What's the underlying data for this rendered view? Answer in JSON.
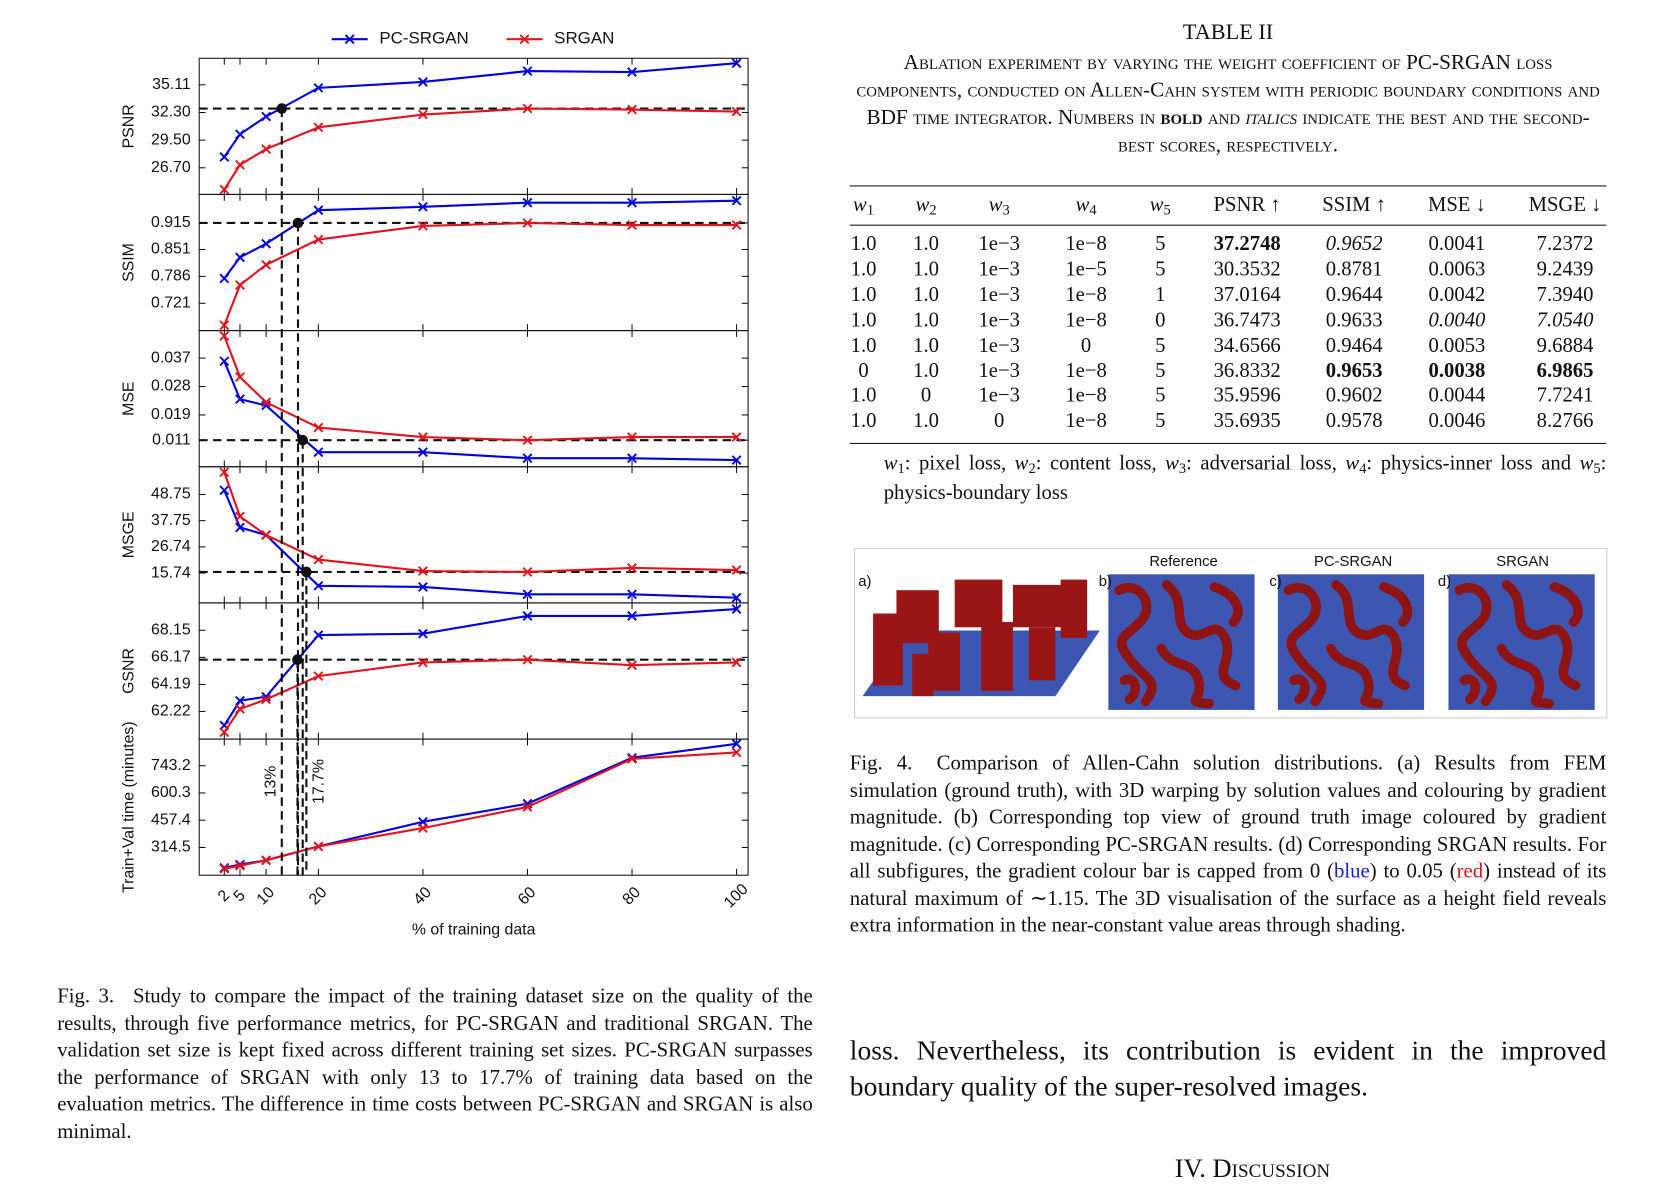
{
  "chart_data": [
    {
      "type": "line",
      "ylabel": "PSNR",
      "x": [
        2,
        5,
        10,
        20,
        40,
        60,
        80,
        100
      ],
      "series": [
        {
          "name": "PC-SRGAN",
          "color": "#0000dd",
          "values": [
            27.8,
            30.1,
            31.9,
            34.8,
            35.4,
            36.5,
            36.4,
            37.3
          ]
        },
        {
          "name": "SRGAN",
          "color": "#e0141e",
          "values": [
            24.5,
            27.0,
            28.6,
            30.8,
            32.1,
            32.7,
            32.6,
            32.4
          ]
        }
      ],
      "xlim": [
        -2.8,
        102.2
      ],
      "xticks": [
        2,
        5,
        10,
        20,
        40,
        60,
        80,
        100
      ],
      "ylim": [
        24.0,
        37.8
      ],
      "yticks": [
        {
          "value": 26.7,
          "label": "26.70"
        },
        {
          "value": 29.5,
          "label": "29.50"
        },
        {
          "value": 32.3,
          "label": "32.30"
        },
        35.11
      ],
      "threshold": 32.7,
      "crossing": 13
    },
    {
      "type": "line",
      "ylabel": "SSIM",
      "x": [
        2,
        5,
        10,
        20,
        40,
        60,
        80,
        100
      ],
      "series": [
        {
          "name": "PC-SRGAN",
          "color": "#0000dd",
          "values": [
            0.781,
            0.832,
            0.865,
            0.946,
            0.954,
            0.964,
            0.964,
            0.969
          ]
        },
        {
          "name": "SRGAN",
          "color": "#e0141e",
          "values": [
            0.668,
            0.765,
            0.814,
            0.875,
            0.908,
            0.915,
            0.91,
            0.91
          ]
        }
      ],
      "xlim": [
        -2.8,
        102.2
      ],
      "xticks": [
        2,
        5,
        10,
        20,
        40,
        60,
        80,
        100
      ],
      "ylim": [
        0.655,
        0.984
      ],
      "yticks": [
        0.721,
        0.786,
        0.851,
        0.915
      ],
      "threshold": 0.915,
      "crossing": 16.1
    },
    {
      "type": "line",
      "ylabel": "MSE",
      "x": [
        2,
        5,
        10,
        20,
        40,
        60,
        80,
        100
      ],
      "series": [
        {
          "name": "PC-SRGAN",
          "color": "#0000dd",
          "values": [
            0.036,
            0.024,
            0.022,
            0.0072,
            0.0072,
            0.0053,
            0.0053,
            0.0047
          ]
        },
        {
          "name": "SRGAN",
          "color": "#e0141e",
          "values": [
            0.044,
            0.031,
            0.023,
            0.015,
            0.012,
            0.011,
            0.012,
            0.012
          ]
        }
      ],
      "xlim": [
        -2.8,
        102.2
      ],
      "xticks": [
        2,
        5,
        10,
        20,
        40,
        60,
        80,
        100
      ],
      "ylim": [
        0.0026,
        0.0457
      ],
      "yticks": [
        0.011,
        0.019,
        0.028,
        0.037
      ],
      "threshold": 0.011,
      "crossing": 17.0
    },
    {
      "type": "line",
      "ylabel": "MSGE",
      "x": [
        2,
        5,
        10,
        20,
        40,
        60,
        80,
        100
      ],
      "series": [
        {
          "name": "PC-SRGAN",
          "color": "#0000dd",
          "values": [
            50.5,
            34.9,
            31.7,
            10.4,
            9.9,
            6.8,
            6.8,
            5.4
          ]
        },
        {
          "name": "SRGAN",
          "color": "#e0141e",
          "values": [
            58.1,
            39.5,
            31.7,
            21.4,
            16.6,
            16.2,
            17.9,
            17.0
          ]
        }
      ],
      "xlim": [
        -2.8,
        102.2
      ],
      "xticks": [
        2,
        5,
        10,
        20,
        40,
        60,
        80,
        100
      ],
      "ylim": [
        3.2,
        60.4
      ],
      "yticks": [
        15.74,
        26.74,
        37.75,
        48.75
      ],
      "threshold": 16.2,
      "crossing": 17.7
    },
    {
      "type": "line",
      "ylabel": "GSNR",
      "x": [
        2,
        5,
        10,
        20,
        40,
        60,
        80,
        100
      ],
      "series": [
        {
          "name": "PC-SRGAN",
          "color": "#0000dd",
          "values": [
            61.2,
            63.0,
            63.3,
            67.8,
            67.9,
            69.2,
            69.2,
            69.7
          ]
        },
        {
          "name": "SRGAN",
          "color": "#e0141e",
          "values": [
            60.7,
            62.4,
            63.1,
            64.8,
            65.8,
            66.0,
            65.6,
            65.8
          ]
        }
      ],
      "xlim": [
        -2.8,
        102.2
      ],
      "xticks": [
        2,
        5,
        10,
        20,
        40,
        60,
        80,
        100
      ],
      "ylim": [
        60.2,
        70.15
      ],
      "yticks": [
        62.22,
        64.19,
        66.17,
        68.15
      ],
      "threshold": 66.0,
      "crossing": 16.0
    },
    {
      "type": "line",
      "ylabel": "Train+Val time (minutes)",
      "xlabel": "% of training data",
      "x": [
        2,
        5,
        10,
        20,
        40,
        60,
        80,
        100
      ],
      "series": [
        {
          "name": "PC-SRGAN",
          "color": "#0000dd",
          "values": [
            208,
            225,
            247,
            320,
            449,
            544,
            785,
            858
          ]
        },
        {
          "name": "SRGAN",
          "color": "#e0141e",
          "values": [
            203,
            219,
            247,
            320,
            416,
            527,
            779,
            813
          ]
        }
      ],
      "xlim": [
        -2.8,
        102.2
      ],
      "xticks": [
        2,
        5,
        10,
        20,
        40,
        60,
        80,
        100
      ],
      "ylim": [
        168.8,
        883
      ],
      "yticks": [
        314.5,
        457.4,
        600.3,
        743.2
      ],
      "annotations": [
        {
          "text": "13%",
          "x": 13
        },
        {
          "text": "17.7%",
          "x": 17.7
        }
      ]
    }
  ],
  "fig3_caption": "Fig. 3.  Study to compare the impact of the training dataset size on the quality of the results, through five performance metrics, for PC-SRGAN and traditional SRGAN. The validation set size is kept fixed across different training set sizes. PC-SRGAN surpasses the performance of SRGAN with only 13 to 17.7% of training data based on the evaluation metrics. The difference in time costs between PC-SRGAN and SRGAN is also minimal.",
  "table": {
    "label": "TABLE II",
    "caption": [
      "Ablation experiment by varying the weight coefficient of PC-SRGAN loss components, conducted on Allen-Cahn system with periodic boundary conditions and BDF time integrator. Numbers in ",
      {
        "text": "bold",
        "style": "bold"
      },
      " and ",
      {
        "text": "italics",
        "style": "italic"
      },
      " indicate the best and the second-best scores, respectively."
    ],
    "header": [
      {
        "sym": "w",
        "sub": "1"
      },
      {
        "sym": "w",
        "sub": "2"
      },
      {
        "sym": "w",
        "sub": "3"
      },
      {
        "sym": "w",
        "sub": "4"
      },
      {
        "sym": "w",
        "sub": "5"
      },
      "PSNR ↑",
      "SSIM ↑",
      "MSE ↓",
      "MSGE ↓"
    ],
    "rows": [
      [
        "1.0",
        "1.0",
        "1e−3",
        "1e−8",
        "5",
        "37.2748",
        "0.9652",
        "0.0041",
        "7.2372"
      ],
      [
        "1.0",
        "1.0",
        "1e−3",
        "1e−5",
        "5",
        "30.3532",
        "0.8781",
        "0.0063",
        "9.2439"
      ],
      [
        "1.0",
        "1.0",
        "1e−3",
        "1e−8",
        "1",
        "37.0164",
        "0.9644",
        "0.0042",
        "7.3940"
      ],
      [
        "1.0",
        "1.0",
        "1e−3",
        "1e−8",
        "0",
        "36.7473",
        "0.9633",
        "0.0040",
        "7.0540"
      ],
      [
        "1.0",
        "1.0",
        "1e−3",
        "0",
        "5",
        "34.6566",
        "0.9464",
        "0.0053",
        "9.6884"
      ],
      [
        "0",
        "1.0",
        "1e−3",
        "1e−8",
        "5",
        "36.8332",
        "0.9653",
        "0.0038",
        "6.9865"
      ],
      [
        "1.0",
        "0",
        "1e−3",
        "1e−8",
        "5",
        "35.9596",
        "0.9602",
        "0.0044",
        "7.7241"
      ],
      [
        "1.0",
        "1.0",
        "0",
        "1e−8",
        "5",
        "35.6935",
        "0.9578",
        "0.0046",
        "8.2766"
      ]
    ],
    "bold_cells": [
      [
        0,
        5
      ],
      [
        5,
        6
      ],
      [
        5,
        7
      ],
      [
        5,
        8
      ]
    ],
    "italic_cells": [
      [
        0,
        6
      ],
      [
        3,
        7
      ],
      [
        3,
        8
      ]
    ],
    "note": [
      {
        "sym": "w",
        "sub": "1"
      },
      ": pixel loss, ",
      {
        "sym": "w",
        "sub": "2"
      },
      ": content loss, ",
      {
        "sym": "w",
        "sub": "3"
      },
      ": adversarial loss, ",
      {
        "sym": "w",
        "sub": "4"
      },
      ": physics-inner loss and ",
      {
        "sym": "w",
        "sub": "5"
      },
      ": physics-boundary loss"
    ]
  },
  "figure4": {
    "panels": [
      {
        "tag": "a)"
      },
      {
        "tag": "b)",
        "title": "Reference"
      },
      {
        "tag": "c)",
        "title": "PC-SRGAN"
      },
      {
        "tag": "d)",
        "title": "SRGAN"
      }
    ],
    "caption": [
      "Fig. 4.  Comparison of Allen-Cahn solution distributions. (a) Results from FEM simulation (ground truth), with 3D warping by solution values and colouring by gradient magnitude. (b) Corresponding top view of ground truth image coloured by gradient magnitude. (c) Corresponding PC-SRGAN results. (d) Corresponding SRGAN results. For all subfigures, the gradient colour bar is capped from 0 (",
      {
        "text": "blue",
        "style": "blue"
      },
      ") to 0.05 (",
      {
        "text": "red",
        "style": "red"
      },
      ") instead of its natural maximum of ∼1.15. The 3D visualisation of the surface as a height field reveals extra information in the near-constant value areas through shading."
    ]
  },
  "body_text": "loss. Nevertheless, its contribution is evident in the improved boundary quality of the super-resolved images.",
  "section_heading": "IV. Discussion"
}
